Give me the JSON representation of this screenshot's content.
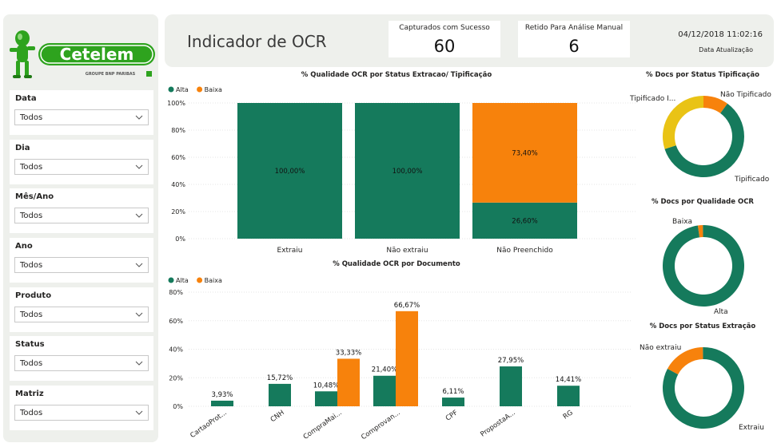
{
  "colors": {
    "alta": "#157a5c",
    "baixa": "#f7820c",
    "tipificado_i": "#e9c315",
    "panel": "#eef0ec"
  },
  "logo": {
    "brand": "Cetelem",
    "group": "GROUPE BNP PARIBAS"
  },
  "header": {
    "title": "Indicador de OCR",
    "cards": [
      {
        "label": "Capturados com Sucesso",
        "value": "60"
      },
      {
        "label": "Retido Para Análise Manual",
        "value": "6"
      }
    ],
    "update_value": "04/12/2018 11:02:16",
    "update_label": "Data Atualização"
  },
  "filters": [
    {
      "label": "Data",
      "value": "Todos"
    },
    {
      "label": "Dia",
      "value": "Todos"
    },
    {
      "label": "Mês/Ano",
      "value": "Todos"
    },
    {
      "label": "Ano",
      "value": "Todos"
    },
    {
      "label": "Produto",
      "value": "Todos"
    },
    {
      "label": "Status",
      "value": "Todos"
    },
    {
      "label": "Matriz",
      "value": "Todos"
    }
  ],
  "chart_data": [
    {
      "type": "bar",
      "stacked": "100%",
      "title": "% Qualidade OCR por Status Extracao/ Tipificação",
      "legend": [
        "Alta",
        "Baixa"
      ],
      "legend_position": "top-left",
      "categories": [
        "Extraiu",
        "Não extraiu",
        "Não Preenchido"
      ],
      "series": [
        {
          "name": "Alta",
          "values": [
            100.0,
            100.0,
            26.6
          ],
          "labels": [
            "100,00%",
            "100,00%",
            "26,60%"
          ]
        },
        {
          "name": "Baixa",
          "values": [
            0,
            0,
            73.4
          ],
          "labels": [
            "",
            "",
            "73,40%"
          ]
        }
      ],
      "yticks": [
        "0%",
        "20%",
        "40%",
        "60%",
        "80%",
        "100%"
      ],
      "ylim": [
        0,
        100
      ]
    },
    {
      "type": "bar",
      "title": "% Qualidade OCR por Documento",
      "legend": [
        "Alta",
        "Baixa"
      ],
      "legend_position": "top-left",
      "categories": [
        "CartaoProt...",
        "CNH",
        "CompraMai...",
        "Comprovan...",
        "CPF",
        "PropostaA...",
        "RG"
      ],
      "series": [
        {
          "name": "Alta",
          "values": [
            3.93,
            15.72,
            10.48,
            21.4,
            6.11,
            27.95,
            14.41
          ],
          "labels": [
            "3,93%",
            "15,72%",
            "10,48%",
            "21,40%",
            "6,11%",
            "27,95%",
            "14,41%"
          ]
        },
        {
          "name": "Baixa",
          "values": [
            null,
            null,
            33.33,
            66.67,
            null,
            null,
            null
          ],
          "labels": [
            "",
            "",
            "33,33%",
            "66,67%",
            "",
            "",
            ""
          ]
        }
      ],
      "yticks": [
        "0%",
        "20%",
        "40%",
        "60%",
        "80%"
      ],
      "ylim": [
        0,
        80
      ]
    },
    {
      "type": "pie",
      "donut": true,
      "title": "% Docs por Status Tipificação",
      "slices": [
        {
          "name": "Não Tipificado",
          "value": 10
        },
        {
          "name": "Tipificado",
          "value": 60
        },
        {
          "name": "Tipificado I...",
          "value": 30
        }
      ],
      "slice_labels": [
        "Não Tipificado",
        "Tipificado",
        "Tipificado I..."
      ]
    },
    {
      "type": "pie",
      "donut": true,
      "title": "% Docs por Qualidade OCR",
      "slices": [
        {
          "name": "Baixa",
          "value": 2
        },
        {
          "name": "Alta",
          "value": 98
        }
      ],
      "slice_labels": [
        "Baixa",
        "Alta"
      ]
    },
    {
      "type": "pie",
      "donut": true,
      "title": "% Docs por Status Extração",
      "slices": [
        {
          "name": "Extraiu",
          "value": 83
        },
        {
          "name": "Não extraiu",
          "value": 17
        }
      ],
      "slice_labels": [
        "Extraiu",
        "Não extraiu"
      ]
    }
  ]
}
